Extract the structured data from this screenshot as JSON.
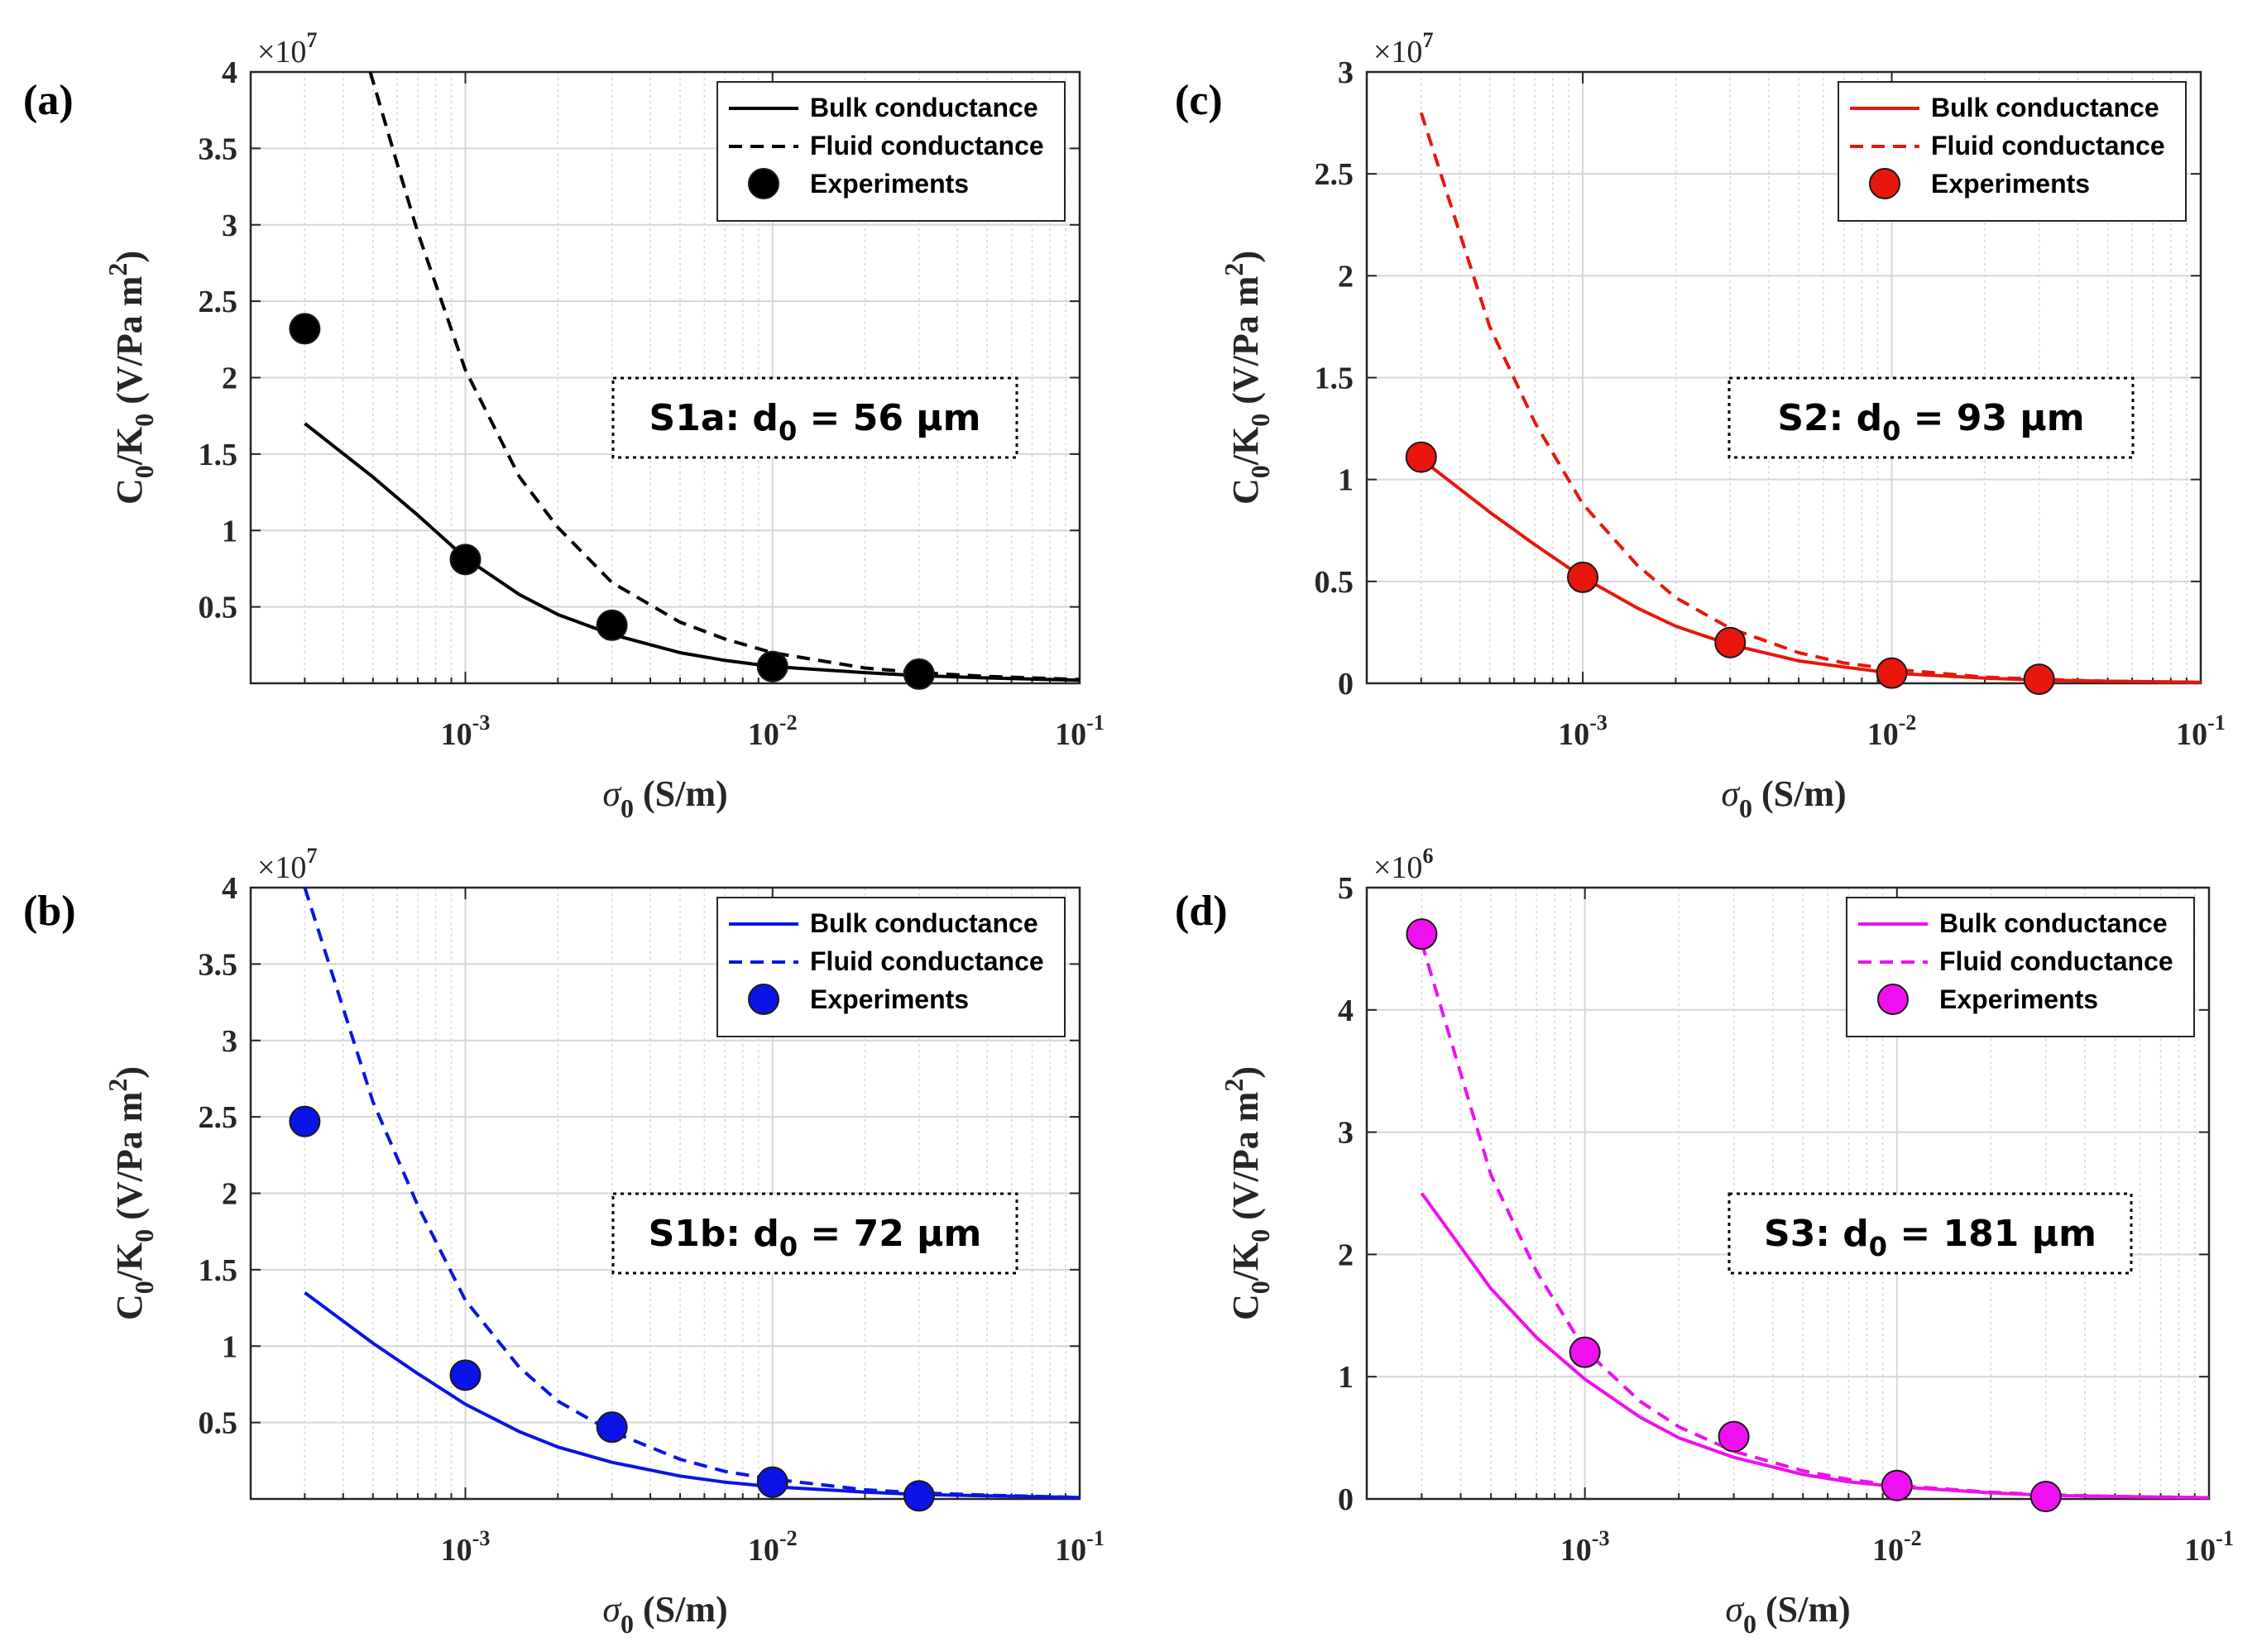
{
  "figure": {
    "panel_labels": [
      "(a)",
      "(c)",
      "(b)",
      "(d)"
    ]
  },
  "chart_data": [
    {
      "type": "line",
      "panel": "(a)",
      "color": "#000000",
      "xlabel": "σ0 (S/m)",
      "ylabel": "C0/K0 (V/Pa m2)",
      "xscale": "log",
      "xlim": [
        0.0002,
        0.1
      ],
      "ylim": [
        0,
        4
      ],
      "y_multiplier": "×10^7",
      "yticks": [
        "0.5",
        "1",
        "1.5",
        "2",
        "2.5",
        "3",
        "3.5",
        "4"
      ],
      "xticks": [
        "10^-3",
        "10^-2",
        "10^-1"
      ],
      "legend": [
        "Bulk conductance",
        "Fluid conductance",
        "Experiments"
      ],
      "legend_location": "top-right",
      "annotation": {
        "sample": "S1a",
        "text": ": d0 = 56 μm"
      },
      "series": [
        {
          "name": "Bulk conductance",
          "style": "solid",
          "x": [
            0.0003,
            0.0005,
            0.0007,
            0.001,
            0.0015,
            0.002,
            0.003,
            0.005,
            0.007,
            0.01,
            0.02,
            0.03,
            0.05,
            0.1
          ],
          "y": [
            1.7,
            1.35,
            1.1,
            0.82,
            0.58,
            0.45,
            0.32,
            0.2,
            0.15,
            0.11,
            0.07,
            0.05,
            0.035,
            0.02
          ]
        },
        {
          "name": "Fluid conductance",
          "style": "dashed",
          "x": [
            0.00049,
            0.0006,
            0.0007,
            0.001,
            0.0015,
            0.002,
            0.003,
            0.005,
            0.007,
            0.01,
            0.02,
            0.03,
            0.05,
            0.1
          ],
          "y": [
            4.0,
            3.4,
            2.95,
            2.05,
            1.35,
            1.02,
            0.66,
            0.4,
            0.29,
            0.2,
            0.1,
            0.07,
            0.045,
            0.025
          ]
        },
        {
          "name": "Experiments",
          "style": "marker",
          "x": [
            0.0003,
            0.001,
            0.003,
            0.01,
            0.03
          ],
          "y": [
            2.32,
            0.81,
            0.38,
            0.11,
            0.06
          ]
        }
      ]
    },
    {
      "type": "line",
      "panel": "(c)",
      "color": "#e8160c",
      "xlabel": "σ0 (S/m)",
      "ylabel": "C0/K0 (V/Pa m2)",
      "xscale": "log",
      "xlim": [
        0.0002,
        0.1
      ],
      "ylim": [
        0,
        3
      ],
      "y_multiplier": "×10^7",
      "yticks": [
        "0",
        "0.5",
        "1",
        "1.5",
        "2",
        "2.5",
        "3"
      ],
      "xticks": [
        "10^-3",
        "10^-2",
        "10^-1"
      ],
      "legend": [
        "Bulk conductance",
        "Fluid conductance",
        "Experiments"
      ],
      "legend_location": "top-right",
      "annotation": {
        "sample": "S2",
        "text": ": d0 = 93 μm"
      },
      "series": [
        {
          "name": "Bulk conductance",
          "style": "solid",
          "x": [
            0.0003,
            0.0005,
            0.0007,
            0.001,
            0.0015,
            0.002,
            0.003,
            0.005,
            0.007,
            0.01,
            0.02,
            0.03,
            0.05,
            0.1
          ],
          "y": [
            1.1,
            0.84,
            0.68,
            0.52,
            0.37,
            0.28,
            0.19,
            0.11,
            0.08,
            0.05,
            0.025,
            0.016,
            0.01,
            0.005
          ]
        },
        {
          "name": "Fluid conductance",
          "style": "dashed",
          "x": [
            0.0003,
            0.0005,
            0.0007,
            0.001,
            0.0015,
            0.002,
            0.003,
            0.005,
            0.007,
            0.01,
            0.02,
            0.03,
            0.05,
            0.1
          ],
          "y": [
            2.8,
            1.75,
            1.28,
            0.88,
            0.58,
            0.42,
            0.27,
            0.15,
            0.1,
            0.07,
            0.03,
            0.02,
            0.01,
            0.005
          ]
        },
        {
          "name": "Experiments",
          "style": "marker",
          "x": [
            0.0003,
            0.001,
            0.003,
            0.01,
            0.03
          ],
          "y": [
            1.11,
            0.52,
            0.2,
            0.05,
            0.02
          ]
        }
      ]
    },
    {
      "type": "line",
      "panel": "(b)",
      "color": "#0a14e6",
      "xlabel": "σ0 (S/m)",
      "ylabel": "C0/K0 (V/Pa m2)",
      "xscale": "log",
      "xlim": [
        0.0002,
        0.1
      ],
      "ylim": [
        0,
        4
      ],
      "y_multiplier": "×10^7",
      "yticks": [
        "0.5",
        "1",
        "1.5",
        "2",
        "2.5",
        "3",
        "3.5",
        "4"
      ],
      "xticks": [
        "10^-3",
        "10^-2",
        "10^-1"
      ],
      "legend": [
        "Bulk conductance",
        "Fluid conductance",
        "Experiments"
      ],
      "legend_location": "top-right",
      "annotation": {
        "sample": "S1b",
        "text": ": d0 = 72 μm"
      },
      "series": [
        {
          "name": "Bulk conductance",
          "style": "solid",
          "x": [
            0.0003,
            0.0005,
            0.0007,
            0.001,
            0.0015,
            0.002,
            0.003,
            0.005,
            0.007,
            0.01,
            0.02,
            0.03,
            0.05,
            0.1
          ],
          "y": [
            1.35,
            1.02,
            0.82,
            0.62,
            0.44,
            0.34,
            0.24,
            0.15,
            0.11,
            0.08,
            0.045,
            0.03,
            0.02,
            0.01
          ]
        },
        {
          "name": "Fluid conductance",
          "style": "dashed",
          "x": [
            0.0003,
            0.0005,
            0.0007,
            0.001,
            0.0015,
            0.002,
            0.003,
            0.005,
            0.007,
            0.01,
            0.02,
            0.03,
            0.05,
            0.1
          ],
          "y": [
            4.0,
            2.6,
            1.92,
            1.3,
            0.86,
            0.64,
            0.44,
            0.26,
            0.18,
            0.13,
            0.06,
            0.04,
            0.025,
            0.01
          ]
        },
        {
          "name": "Experiments",
          "style": "marker",
          "x": [
            0.0003,
            0.001,
            0.003,
            0.01,
            0.03
          ],
          "y": [
            2.47,
            0.81,
            0.47,
            0.11,
            0.02
          ]
        }
      ]
    },
    {
      "type": "line",
      "panel": "(d)",
      "color": "#ee10ee",
      "xlabel": "σ0 (S/m)",
      "ylabel": "C0/K0 (V/Pa m2)",
      "xscale": "log",
      "xlim": [
        0.0002,
        0.1
      ],
      "ylim": [
        0,
        5
      ],
      "y_multiplier": "×10^6",
      "yticks": [
        "0",
        "1",
        "2",
        "3",
        "4",
        "5"
      ],
      "xticks": [
        "10^-3",
        "10^-2",
        "10^-1"
      ],
      "legend": [
        "Bulk conductance",
        "Fluid conductance",
        "Experiments"
      ],
      "legend_location": "top-right",
      "annotation": {
        "sample": "S3",
        "text": ": d0 = 181 μm"
      },
      "series": [
        {
          "name": "Bulk conductance",
          "style": "solid",
          "x": [
            0.0003,
            0.0005,
            0.0007,
            0.001,
            0.0015,
            0.002,
            0.003,
            0.005,
            0.007,
            0.01,
            0.02,
            0.03,
            0.05,
            0.1
          ],
          "y": [
            2.5,
            1.72,
            1.32,
            0.98,
            0.67,
            0.5,
            0.34,
            0.2,
            0.14,
            0.1,
            0.05,
            0.03,
            0.02,
            0.01
          ]
        },
        {
          "name": "Fluid conductance",
          "style": "dashed",
          "x": [
            0.0003,
            0.0005,
            0.0007,
            0.001,
            0.0015,
            0.002,
            0.003,
            0.005,
            0.007,
            0.01,
            0.02,
            0.03,
            0.05,
            0.1
          ],
          "y": [
            4.55,
            2.65,
            1.86,
            1.22,
            0.8,
            0.59,
            0.39,
            0.23,
            0.16,
            0.11,
            0.055,
            0.035,
            0.02,
            0.01
          ]
        },
        {
          "name": "Experiments",
          "style": "marker",
          "x": [
            0.0003,
            0.001,
            0.003,
            0.01,
            0.03
          ],
          "y": [
            4.62,
            1.2,
            0.51,
            0.11,
            0.02
          ]
        }
      ]
    }
  ]
}
